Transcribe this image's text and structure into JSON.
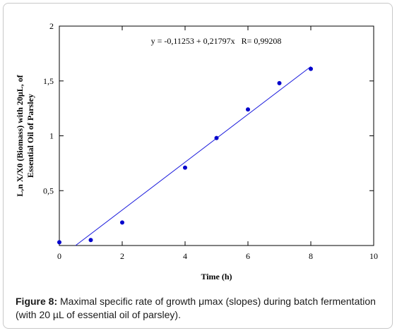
{
  "chart_data": {
    "type": "scatter",
    "xlabel": "Time (h)",
    "ylabel_lines": [
      "L,n X/X0 (Biomass) with 20µL, of",
      "Essential Oil of Parsley"
    ],
    "xlim": [
      0,
      10
    ],
    "ylim": [
      0,
      2
    ],
    "x_ticks": [
      0,
      2,
      4,
      6,
      8,
      10
    ],
    "x_tick_labels": [
      "0",
      "2",
      "4",
      "6",
      "8",
      "10"
    ],
    "y_ticks": [
      0.5,
      1,
      1.5,
      2
    ],
    "y_tick_labels": [
      "0,5",
      "1",
      "1,5",
      "2"
    ],
    "grid": false,
    "annotation": "y = -0,11253 + 0,21797x   R= 0,99208",
    "points": [
      {
        "x": 0,
        "y": 0.03
      },
      {
        "x": 1,
        "y": 0.05
      },
      {
        "x": 2,
        "y": 0.21
      },
      {
        "x": 4,
        "y": 0.71
      },
      {
        "x": 5,
        "y": 0.98
      },
      {
        "x": 6,
        "y": 1.24
      },
      {
        "x": 7,
        "y": 1.48
      },
      {
        "x": 8,
        "y": 1.61
      }
    ],
    "fit": {
      "intercept": -0.11253,
      "slope": 0.21797,
      "x_range": [
        0.516,
        8
      ]
    },
    "colors": {
      "points": "#0000cc",
      "fit_line": "#1a1adc",
      "axes": "#000000"
    }
  },
  "caption": {
    "label": "Figure 8:",
    "text": " Maximal specific rate of growth μmax (slopes) during batch fermentation (with 20 µL of essential oil of parsley)."
  }
}
